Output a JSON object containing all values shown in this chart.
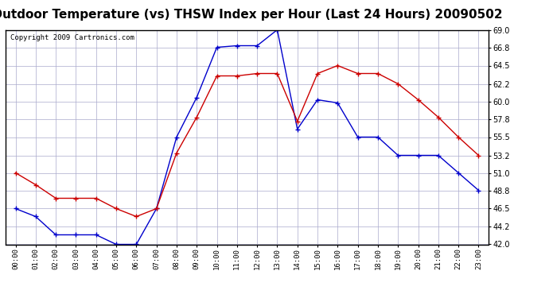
{
  "title": "Outdoor Temperature (vs) THSW Index per Hour (Last 24 Hours) 20090502",
  "copyright": "Copyright 2009 Cartronics.com",
  "hours": [
    "00:00",
    "01:00",
    "02:00",
    "03:00",
    "04:00",
    "05:00",
    "06:00",
    "07:00",
    "08:00",
    "09:00",
    "10:00",
    "11:00",
    "12:00",
    "13:00",
    "14:00",
    "15:00",
    "16:00",
    "17:00",
    "18:00",
    "19:00",
    "20:00",
    "21:00",
    "22:00",
    "23:00"
  ],
  "blue_data": [
    46.5,
    45.5,
    43.2,
    43.2,
    43.2,
    42.0,
    42.0,
    46.5,
    55.5,
    60.5,
    66.8,
    67.0,
    67.0,
    69.0,
    56.5,
    60.2,
    59.8,
    55.5,
    55.5,
    53.2,
    53.2,
    53.2,
    51.0,
    48.8
  ],
  "red_data": [
    51.0,
    49.5,
    47.8,
    47.8,
    47.8,
    46.5,
    45.5,
    46.5,
    53.5,
    58.0,
    63.2,
    63.2,
    63.5,
    63.5,
    57.5,
    63.5,
    64.5,
    63.5,
    63.5,
    62.2,
    60.2,
    58.0,
    55.5,
    53.2
  ],
  "ylim": [
    42.0,
    69.0
  ],
  "yticks": [
    42.0,
    44.2,
    46.5,
    48.8,
    51.0,
    53.2,
    55.5,
    57.8,
    60.0,
    62.2,
    64.5,
    66.8,
    69.0
  ],
  "blue_color": "#0000cc",
  "red_color": "#cc0000",
  "bg_color": "#ffffff",
  "grid_color": "#aaaacc",
  "title_fontsize": 11,
  "copyright_fontsize": 6.5
}
